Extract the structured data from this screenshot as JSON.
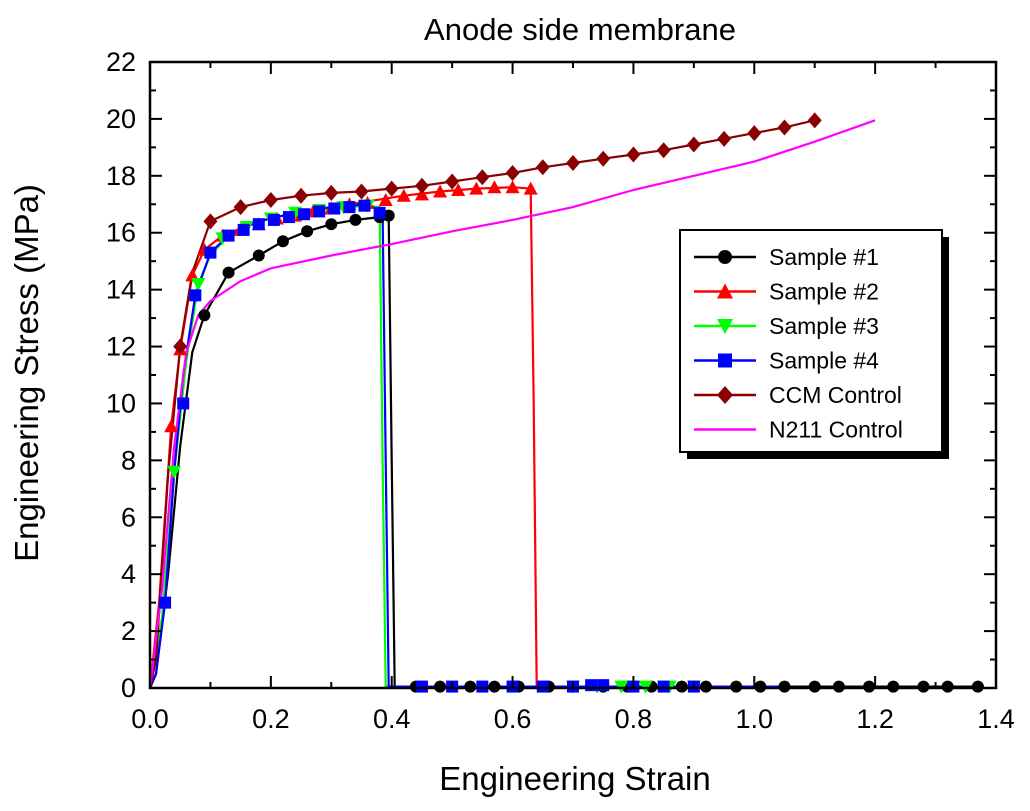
{
  "chart_data": {
    "type": "line",
    "title": "Anode side membrane",
    "xlabel": "Engineering Strain",
    "ylabel": "Engineering Stress (MPa)",
    "xlim": [
      0.0,
      1.4
    ],
    "ylim": [
      0,
      22
    ],
    "xticks": [
      "0.0",
      "0.2",
      "0.4",
      "0.6",
      "0.8",
      "1.0",
      "1.2",
      "1.4"
    ],
    "yticks": [
      "0",
      "2",
      "4",
      "6",
      "8",
      "10",
      "12",
      "14",
      "16",
      "18",
      "20",
      "22"
    ],
    "grid": false,
    "legend_position": "right",
    "series": [
      {
        "name": "Sample #1",
        "color": "#000000",
        "marker": "circle",
        "points": [
          [
            0.0,
            0.0
          ],
          [
            0.01,
            0.5
          ],
          [
            0.03,
            4.0
          ],
          [
            0.05,
            8.5
          ],
          [
            0.07,
            11.8
          ],
          [
            0.09,
            13.1
          ],
          [
            0.13,
            14.6
          ],
          [
            0.18,
            15.2
          ],
          [
            0.22,
            15.7
          ],
          [
            0.26,
            16.05
          ],
          [
            0.3,
            16.3
          ],
          [
            0.34,
            16.45
          ],
          [
            0.38,
            16.55
          ],
          [
            0.395,
            16.6
          ],
          [
            0.4,
            8.0
          ],
          [
            0.405,
            0.05
          ],
          [
            0.44,
            0.05
          ],
          [
            0.5,
            0.05
          ],
          [
            0.6,
            0.05
          ],
          [
            0.7,
            0.05
          ],
          [
            0.8,
            0.05
          ],
          [
            0.9,
            0.05
          ],
          [
            1.0,
            0.05
          ],
          [
            1.1,
            0.05
          ],
          [
            1.2,
            0.05
          ],
          [
            1.3,
            0.05
          ],
          [
            1.38,
            0.05
          ]
        ],
        "markers": [
          [
            0.09,
            13.1
          ],
          [
            0.13,
            14.6
          ],
          [
            0.18,
            15.2
          ],
          [
            0.22,
            15.7
          ],
          [
            0.26,
            16.05
          ],
          [
            0.3,
            16.3
          ],
          [
            0.34,
            16.45
          ],
          [
            0.38,
            16.55
          ],
          [
            0.395,
            16.6
          ],
          [
            0.44,
            0.05
          ],
          [
            0.48,
            0.05
          ],
          [
            0.53,
            0.05
          ],
          [
            0.57,
            0.05
          ],
          [
            0.61,
            0.05
          ],
          [
            0.66,
            0.05
          ],
          [
            0.7,
            0.05
          ],
          [
            0.75,
            0.05
          ],
          [
            0.79,
            0.05
          ],
          [
            0.83,
            0.05
          ],
          [
            0.88,
            0.05
          ],
          [
            0.92,
            0.05
          ],
          [
            0.97,
            0.05
          ],
          [
            1.01,
            0.05
          ],
          [
            1.05,
            0.05
          ],
          [
            1.1,
            0.05
          ],
          [
            1.14,
            0.05
          ],
          [
            1.19,
            0.05
          ],
          [
            1.23,
            0.05
          ],
          [
            1.28,
            0.05
          ],
          [
            1.32,
            0.05
          ],
          [
            1.37,
            0.05
          ]
        ]
      },
      {
        "name": "Sample #2",
        "color": "#ff0000",
        "marker": "triangle-up",
        "points": [
          [
            0.0,
            0.0
          ],
          [
            0.015,
            3.0
          ],
          [
            0.035,
            9.2
          ],
          [
            0.05,
            11.9
          ],
          [
            0.07,
            14.5
          ],
          [
            0.09,
            15.4
          ],
          [
            0.12,
            15.9
          ],
          [
            0.18,
            16.4
          ],
          [
            0.24,
            16.7
          ],
          [
            0.3,
            16.9
          ],
          [
            0.36,
            17.1
          ],
          [
            0.42,
            17.3
          ],
          [
            0.48,
            17.45
          ],
          [
            0.54,
            17.55
          ],
          [
            0.6,
            17.6
          ],
          [
            0.63,
            17.55
          ],
          [
            0.635,
            10.0
          ],
          [
            0.64,
            0.05
          ],
          [
            0.7,
            0.05
          ],
          [
            0.8,
            0.05
          ],
          [
            0.9,
            0.05
          ],
          [
            1.0,
            0.05
          ],
          [
            1.06,
            0.05
          ]
        ],
        "markers": [
          [
            0.035,
            9.2
          ],
          [
            0.05,
            11.9
          ],
          [
            0.07,
            14.5
          ],
          [
            0.09,
            15.4
          ],
          [
            0.12,
            15.9
          ],
          [
            0.15,
            16.1
          ],
          [
            0.18,
            16.3
          ],
          [
            0.21,
            16.5
          ],
          [
            0.24,
            16.6
          ],
          [
            0.27,
            16.75
          ],
          [
            0.3,
            16.85
          ],
          [
            0.33,
            17.0
          ],
          [
            0.36,
            17.05
          ],
          [
            0.39,
            17.15
          ],
          [
            0.42,
            17.3
          ],
          [
            0.45,
            17.35
          ],
          [
            0.48,
            17.45
          ],
          [
            0.51,
            17.5
          ],
          [
            0.54,
            17.55
          ],
          [
            0.57,
            17.6
          ],
          [
            0.6,
            17.6
          ],
          [
            0.63,
            17.55
          ]
        ]
      },
      {
        "name": "Sample #3",
        "color": "#00ff00",
        "marker": "triangle-down",
        "points": [
          [
            0.0,
            0.0
          ],
          [
            0.02,
            2.5
          ],
          [
            0.04,
            7.6
          ],
          [
            0.06,
            11.5
          ],
          [
            0.08,
            14.2
          ],
          [
            0.1,
            15.2
          ],
          [
            0.13,
            15.9
          ],
          [
            0.18,
            16.4
          ],
          [
            0.24,
            16.7
          ],
          [
            0.3,
            16.85
          ],
          [
            0.36,
            16.95
          ],
          [
            0.38,
            16.9
          ],
          [
            0.385,
            8.0
          ],
          [
            0.39,
            0.05
          ],
          [
            0.5,
            0.05
          ],
          [
            0.6,
            0.05
          ],
          [
            0.7,
            0.05
          ],
          [
            0.8,
            0.05
          ],
          [
            0.9,
            0.05
          ],
          [
            1.0,
            0.05
          ],
          [
            1.06,
            0.05
          ]
        ],
        "markers": [
          [
            0.04,
            7.6
          ],
          [
            0.08,
            14.2
          ],
          [
            0.12,
            15.8
          ],
          [
            0.16,
            16.2
          ],
          [
            0.2,
            16.5
          ],
          [
            0.24,
            16.7
          ],
          [
            0.28,
            16.8
          ],
          [
            0.32,
            16.9
          ],
          [
            0.36,
            16.95
          ],
          [
            0.7,
            0.05
          ],
          [
            0.74,
            0.05
          ],
          [
            0.78,
            0.05
          ],
          [
            0.82,
            0.05
          ],
          [
            0.86,
            0.05
          ],
          [
            0.9,
            0.05
          ]
        ]
      },
      {
        "name": "Sample #4",
        "color": "#0000ff",
        "marker": "square",
        "points": [
          [
            0.0,
            0.0
          ],
          [
            0.01,
            0.5
          ],
          [
            0.025,
            3.0
          ],
          [
            0.04,
            7.6
          ],
          [
            0.055,
            11.0
          ],
          [
            0.075,
            13.8
          ],
          [
            0.1,
            15.3
          ],
          [
            0.13,
            15.9
          ],
          [
            0.18,
            16.4
          ],
          [
            0.24,
            16.7
          ],
          [
            0.3,
            16.9
          ],
          [
            0.36,
            17.0
          ],
          [
            0.385,
            16.7
          ],
          [
            0.39,
            8.0
          ],
          [
            0.395,
            0.05
          ],
          [
            0.5,
            0.05
          ],
          [
            0.6,
            0.05
          ],
          [
            0.7,
            0.05
          ],
          [
            0.8,
            0.05
          ],
          [
            0.9,
            0.05
          ],
          [
            1.0,
            0.05
          ],
          [
            1.06,
            0.05
          ]
        ],
        "markers": [
          [
            0.025,
            3.0
          ],
          [
            0.055,
            10.0
          ],
          [
            0.075,
            13.8
          ],
          [
            0.1,
            15.3
          ],
          [
            0.13,
            15.9
          ],
          [
            0.155,
            16.1
          ],
          [
            0.18,
            16.3
          ],
          [
            0.205,
            16.45
          ],
          [
            0.23,
            16.55
          ],
          [
            0.255,
            16.65
          ],
          [
            0.28,
            16.75
          ],
          [
            0.305,
            16.85
          ],
          [
            0.33,
            16.9
          ],
          [
            0.355,
            16.95
          ],
          [
            0.38,
            16.7
          ],
          [
            0.45,
            0.05
          ],
          [
            0.5,
            0.05
          ],
          [
            0.55,
            0.05
          ],
          [
            0.6,
            0.05
          ],
          [
            0.65,
            0.05
          ],
          [
            0.7,
            0.05
          ],
          [
            0.73,
            0.1
          ],
          [
            0.75,
            0.1
          ],
          [
            0.8,
            0.05
          ],
          [
            0.85,
            0.05
          ],
          [
            0.9,
            0.05
          ]
        ]
      },
      {
        "name": "CCM Control",
        "color": "#8b0000",
        "marker": "diamond",
        "points": [
          [
            0.0,
            0.0
          ],
          [
            0.01,
            1.0
          ],
          [
            0.03,
            7.5
          ],
          [
            0.05,
            12.0
          ],
          [
            0.07,
            14.6
          ],
          [
            0.1,
            16.4
          ],
          [
            0.15,
            16.9
          ],
          [
            0.2,
            17.15
          ],
          [
            0.25,
            17.3
          ],
          [
            0.3,
            17.4
          ],
          [
            0.35,
            17.45
          ],
          [
            0.4,
            17.55
          ],
          [
            0.45,
            17.65
          ],
          [
            0.5,
            17.8
          ],
          [
            0.55,
            17.95
          ],
          [
            0.6,
            18.1
          ],
          [
            0.65,
            18.3
          ],
          [
            0.7,
            18.45
          ],
          [
            0.75,
            18.6
          ],
          [
            0.8,
            18.75
          ],
          [
            0.85,
            18.9
          ],
          [
            0.9,
            19.1
          ],
          [
            0.95,
            19.3
          ],
          [
            1.0,
            19.5
          ],
          [
            1.05,
            19.7
          ],
          [
            1.1,
            19.95
          ]
        ],
        "markers": [
          [
            0.05,
            12.0
          ],
          [
            0.1,
            16.4
          ],
          [
            0.15,
            16.9
          ],
          [
            0.2,
            17.15
          ],
          [
            0.25,
            17.3
          ],
          [
            0.3,
            17.4
          ],
          [
            0.35,
            17.45
          ],
          [
            0.4,
            17.55
          ],
          [
            0.45,
            17.65
          ],
          [
            0.5,
            17.8
          ],
          [
            0.55,
            17.95
          ],
          [
            0.6,
            18.1
          ],
          [
            0.65,
            18.3
          ],
          [
            0.7,
            18.45
          ],
          [
            0.75,
            18.6
          ],
          [
            0.8,
            18.75
          ],
          [
            0.85,
            18.9
          ],
          [
            0.9,
            19.1
          ],
          [
            0.95,
            19.3
          ],
          [
            1.0,
            19.5
          ],
          [
            1.05,
            19.7
          ],
          [
            1.1,
            19.95
          ]
        ]
      },
      {
        "name": "N211 Control",
        "color": "#ff00ff",
        "marker": "none",
        "points": [
          [
            0.0,
            0.0
          ],
          [
            0.02,
            3.5
          ],
          [
            0.04,
            8.5
          ],
          [
            0.06,
            11.8
          ],
          [
            0.08,
            13.1
          ],
          [
            0.1,
            13.6
          ],
          [
            0.15,
            14.3
          ],
          [
            0.2,
            14.75
          ],
          [
            0.3,
            15.2
          ],
          [
            0.4,
            15.6
          ],
          [
            0.5,
            16.05
          ],
          [
            0.6,
            16.45
          ],
          [
            0.7,
            16.9
          ],
          [
            0.8,
            17.5
          ],
          [
            0.9,
            18.0
          ],
          [
            1.0,
            18.5
          ],
          [
            1.1,
            19.2
          ],
          [
            1.2,
            19.95
          ]
        ],
        "markers": []
      }
    ]
  }
}
